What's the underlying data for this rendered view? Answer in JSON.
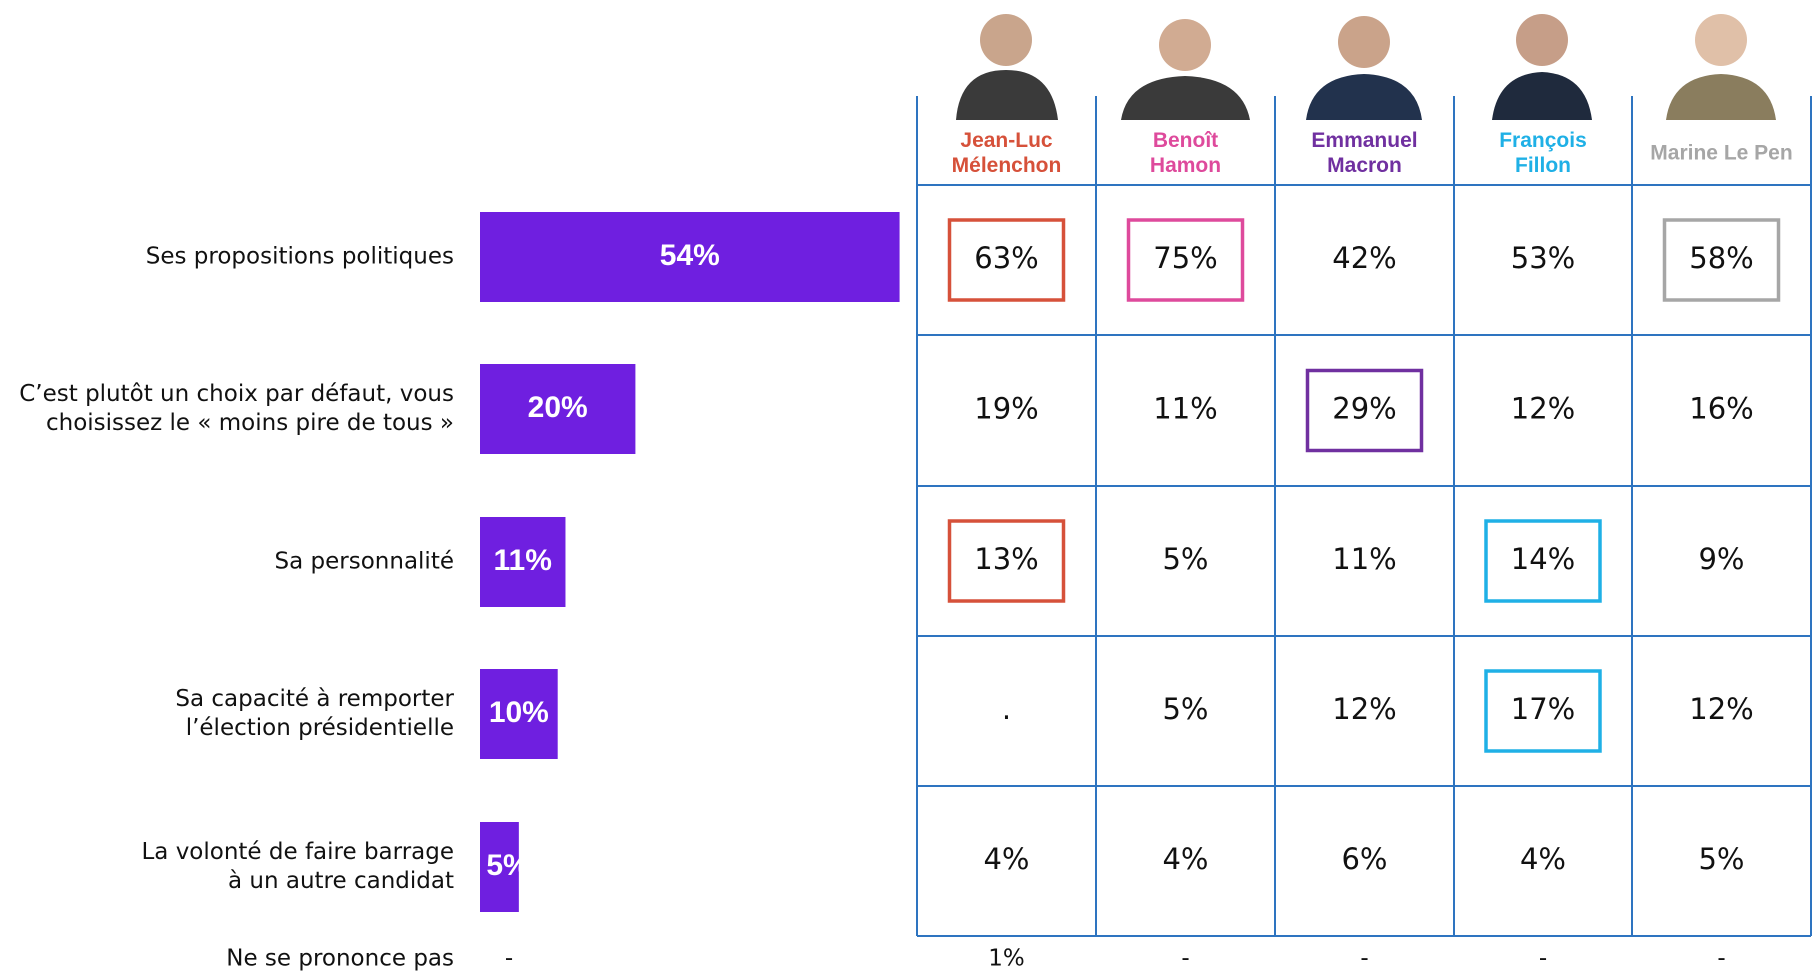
{
  "chart_data": {
    "type": "bar",
    "orientation": "horizontal",
    "color": "#6f1fe0",
    "categories": [
      [
        "Ses propositions politiques"
      ],
      [
        "C’est plutôt un choix par défaut, vous",
        "choisissez le « moins pire de tous »"
      ],
      [
        "Sa personnalité"
      ],
      [
        "Sa capacité à remporter",
        "l’élection présidentielle"
      ],
      [
        "La volonté de faire barrage",
        "à un autre candidat"
      ],
      [
        "Ne se prononce pas"
      ]
    ],
    "values": [
      54,
      20,
      11,
      10,
      5,
      null
    ],
    "value_labels": [
      "54%",
      "20%",
      "11%",
      "10%",
      "5%",
      "-"
    ]
  },
  "table": {
    "columns": [
      {
        "name": [
          "Jean-Luc",
          "Mélenchon"
        ],
        "color": "#d6513a"
      },
      {
        "name": [
          "Benoît",
          "Hamon"
        ],
        "color": "#de4a9c"
      },
      {
        "name": [
          "Emmanuel",
          "Macron"
        ],
        "color": "#7030a0"
      },
      {
        "name": [
          "François",
          "Fillon"
        ],
        "color": "#1fb0e6"
      },
      {
        "name": [
          "Marine Le Pen"
        ],
        "color": "#a6a6a6"
      }
    ],
    "rows": [
      [
        {
          "text": "63%",
          "boxed": true
        },
        {
          "text": "75%",
          "boxed": true
        },
        {
          "text": "42%"
        },
        {
          "text": "53%"
        },
        {
          "text": "58%",
          "boxed": true
        }
      ],
      [
        {
          "text": "19%"
        },
        {
          "text": "11%"
        },
        {
          "text": "29%",
          "boxed": true
        },
        {
          "text": "12%"
        },
        {
          "text": "16%"
        }
      ],
      [
        {
          "text": "13%",
          "boxed": true
        },
        {
          "text": "5%"
        },
        {
          "text": "11%"
        },
        {
          "text": "14%",
          "boxed": true
        },
        {
          "text": "9%"
        }
      ],
      [
        {
          "text": "."
        },
        {
          "text": "5%"
        },
        {
          "text": "12%"
        },
        {
          "text": "17%",
          "boxed": true
        },
        {
          "text": "12%"
        }
      ],
      [
        {
          "text": "4%"
        },
        {
          "text": "4%"
        },
        {
          "text": "6%"
        },
        {
          "text": "4%"
        },
        {
          "text": "5%"
        }
      ],
      [
        {
          "text": "1%"
        },
        {
          "text": "-"
        },
        {
          "text": "-"
        },
        {
          "text": "-"
        },
        {
          "text": "-"
        }
      ]
    ]
  }
}
